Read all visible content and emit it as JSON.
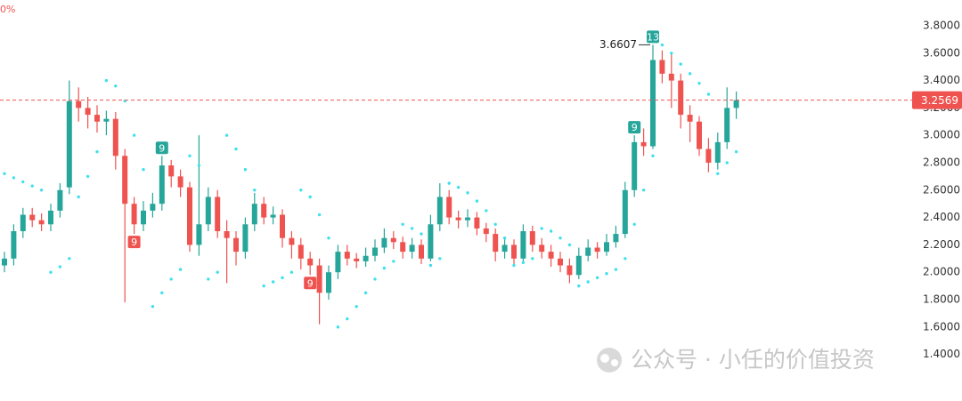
{
  "chart_data": {
    "type": "candlestick",
    "corner_label": "0%",
    "watermark": "公众号 · 小任的价值投资",
    "ylim": [
      1.06,
      3.988
    ],
    "yticks": [
      {
        "value": 1.4,
        "label": "1.4000"
      },
      {
        "value": 1.6,
        "label": "1.6000"
      },
      {
        "value": 1.8,
        "label": "1.8000"
      },
      {
        "value": 2.0,
        "label": "2.0000"
      },
      {
        "value": 2.2,
        "label": "2.2000"
      },
      {
        "value": 2.4,
        "label": "2.4000"
      },
      {
        "value": 2.6,
        "label": "2.6000"
      },
      {
        "value": 2.8,
        "label": "2.8000"
      },
      {
        "value": 3.0,
        "label": "3.0000"
      },
      {
        "value": 3.2,
        "label": "3.2000"
      },
      {
        "value": 3.4,
        "label": "3.4000"
      },
      {
        "value": 3.6,
        "label": "3.6000"
      },
      {
        "value": 3.8,
        "label": "3.8000"
      }
    ],
    "up_color": "#26a69a",
    "down_color": "#ef5350",
    "sar_color": "#3fe0ee",
    "open": [
      2.05,
      2.1,
      2.3,
      2.42,
      2.38,
      2.35,
      2.45,
      2.62,
      3.25,
      3.2,
      3.15,
      3.1,
      3.12,
      2.85,
      2.5,
      2.35,
      2.45,
      2.5,
      2.78,
      2.7,
      2.62,
      2.2,
      2.35,
      2.55,
      2.3,
      2.25,
      2.15,
      2.35,
      2.5,
      2.4,
      2.42,
      2.25,
      2.2,
      2.1,
      2.05,
      1.85,
      2.0,
      2.15,
      2.1,
      2.08,
      2.12,
      2.18,
      2.25,
      2.22,
      2.15,
      2.2,
      2.1,
      2.35,
      2.55,
      2.4,
      2.38,
      2.4,
      2.32,
      2.28,
      2.15,
      2.2,
      2.1,
      2.3,
      2.2,
      2.15,
      2.1,
      2.05,
      1.98,
      2.12,
      2.18,
      2.15,
      2.22,
      2.28,
      2.6,
      2.95,
      2.92,
      3.55,
      3.45,
      3.4,
      3.15,
      3.1,
      2.9,
      2.8,
      2.95,
      3.2
    ],
    "high": [
      2.15,
      2.35,
      2.47,
      2.47,
      2.43,
      2.5,
      2.65,
      3.4,
      3.35,
      3.28,
      3.22,
      3.18,
      3.17,
      2.9,
      2.55,
      2.52,
      2.58,
      2.85,
      2.82,
      2.75,
      2.66,
      3.0,
      2.62,
      2.6,
      2.38,
      2.3,
      2.4,
      2.58,
      2.55,
      2.48,
      2.46,
      2.3,
      2.25,
      2.15,
      2.1,
      2.05,
      2.2,
      2.2,
      2.14,
      2.18,
      2.24,
      2.32,
      2.3,
      2.26,
      2.25,
      2.24,
      2.42,
      2.65,
      2.6,
      2.45,
      2.46,
      2.44,
      2.36,
      2.32,
      2.26,
      2.24,
      2.35,
      2.34,
      2.25,
      2.2,
      2.15,
      2.1,
      2.18,
      2.24,
      2.22,
      2.28,
      2.34,
      2.66,
      3.0,
      3.05,
      3.6607,
      3.62,
      3.6,
      3.45,
      3.22,
      3.14,
      2.98,
      3.02,
      3.35,
      3.32
    ],
    "low": [
      2.0,
      2.05,
      2.25,
      2.33,
      2.3,
      2.3,
      2.4,
      2.57,
      3.1,
      3.05,
      3.02,
      3.0,
      2.75,
      1.78,
      2.28,
      2.3,
      2.4,
      2.45,
      2.62,
      2.55,
      2.15,
      2.12,
      2.3,
      2.25,
      1.92,
      2.05,
      2.1,
      2.3,
      2.35,
      2.35,
      2.18,
      2.1,
      2.02,
      1.98,
      1.62,
      1.8,
      1.95,
      2.05,
      2.03,
      2.04,
      2.08,
      2.14,
      2.17,
      2.1,
      2.1,
      2.06,
      2.08,
      2.3,
      2.35,
      2.32,
      2.33,
      2.27,
      2.22,
      2.08,
      2.1,
      2.05,
      2.07,
      2.15,
      2.1,
      2.04,
      2.0,
      1.92,
      1.95,
      2.08,
      2.1,
      2.12,
      2.18,
      2.25,
      2.55,
      2.85,
      2.9,
      3.38,
      3.2,
      3.05,
      2.95,
      2.85,
      2.73,
      2.75,
      2.9,
      3.12
    ],
    "close": [
      2.1,
      2.3,
      2.42,
      2.38,
      2.35,
      2.45,
      2.6,
      3.25,
      3.2,
      3.15,
      3.1,
      3.12,
      2.85,
      2.5,
      2.35,
      2.45,
      2.5,
      2.78,
      2.7,
      2.62,
      2.2,
      2.35,
      2.55,
      2.3,
      2.25,
      2.15,
      2.35,
      2.5,
      2.4,
      2.42,
      2.25,
      2.2,
      2.1,
      2.05,
      1.85,
      2.0,
      2.15,
      2.1,
      2.08,
      2.12,
      2.18,
      2.25,
      2.22,
      2.15,
      2.2,
      2.1,
      2.35,
      2.55,
      2.4,
      2.38,
      2.4,
      2.32,
      2.28,
      2.15,
      2.2,
      2.1,
      2.3,
      2.2,
      2.15,
      2.1,
      2.05,
      1.98,
      2.12,
      2.18,
      2.15,
      2.22,
      2.28,
      2.6,
      2.95,
      2.92,
      3.55,
      3.45,
      3.4,
      3.15,
      3.1,
      2.9,
      2.8,
      2.95,
      3.2,
      3.2569
    ],
    "sar": [
      2.72,
      2.69,
      2.66,
      2.63,
      2.6,
      2.0,
      2.04,
      2.1,
      2.55,
      2.7,
      2.88,
      3.4,
      3.36,
      3.25,
      3.0,
      2.75,
      1.75,
      1.85,
      1.95,
      2.02,
      2.85,
      2.78,
      1.95,
      2.0,
      3.0,
      2.9,
      2.75,
      2.6,
      1.9,
      1.93,
      1.96,
      2.0,
      2.6,
      2.55,
      2.42,
      2.25,
      1.6,
      1.66,
      1.75,
      1.85,
      1.95,
      2.03,
      2.08,
      2.35,
      2.32,
      2.28,
      2.05,
      2.1,
      2.65,
      2.62,
      2.58,
      2.52,
      2.45,
      2.35,
      2.25,
      2.05,
      2.07,
      2.1,
      2.32,
      2.3,
      2.25,
      2.2,
      1.9,
      1.93,
      1.96,
      1.99,
      2.02,
      2.1,
      2.35,
      2.6,
      2.85,
      3.66,
      3.6,
      3.52,
      3.45,
      3.38,
      3.3,
      2.72,
      2.8,
      2.88
    ],
    "td_marks": [
      {
        "index": 14,
        "label": "9",
        "position": "below"
      },
      {
        "index": 17,
        "label": "9",
        "position": "above"
      },
      {
        "index": 33,
        "label": "9",
        "position": "below"
      },
      {
        "index": 68,
        "label": "9",
        "position": "above"
      },
      {
        "index": 70,
        "label": "13",
        "position": "above"
      }
    ]
  }
}
